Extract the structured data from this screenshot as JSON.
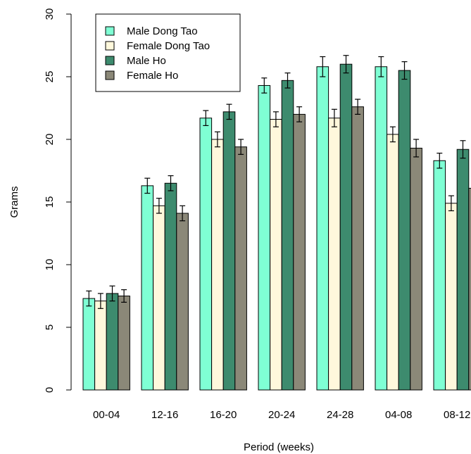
{
  "chart_data": {
    "type": "bar",
    "title": "",
    "xlabel": "Period (weeks)",
    "ylabel": "Grams",
    "ylim": [
      0,
      30
    ],
    "yticks": [
      0,
      5,
      10,
      15,
      20,
      25,
      30
    ],
    "grid": false,
    "legend_position": "top-left",
    "categories": [
      "00-04",
      "12-16",
      "16-20",
      "20-24",
      "24-28",
      "04-08",
      "08-12"
    ],
    "series": [
      {
        "name": "Male Dong Tao",
        "color": "#7fffd4",
        "values": [
          7.3,
          16.3,
          21.7,
          24.3,
          25.8,
          25.8,
          18.3
        ],
        "errors": [
          0.6,
          0.6,
          0.6,
          0.6,
          0.8,
          0.8,
          0.6
        ]
      },
      {
        "name": "Female Dong Tao",
        "color": "#fff8dc",
        "values": [
          7.1,
          14.7,
          20.0,
          21.6,
          21.7,
          20.4,
          14.9
        ],
        "errors": [
          0.6,
          0.6,
          0.6,
          0.6,
          0.7,
          0.6,
          0.6
        ]
      },
      {
        "name": "Male Ho",
        "color": "#3d8b6e",
        "values": [
          7.7,
          16.5,
          22.2,
          24.7,
          26.0,
          25.5,
          19.2
        ],
        "errors": [
          0.6,
          0.6,
          0.6,
          0.6,
          0.7,
          0.7,
          0.7
        ]
      },
      {
        "name": "Female Ho",
        "color": "#8b8878",
        "values": [
          7.5,
          14.1,
          19.4,
          22.0,
          22.6,
          19.3,
          16.1
        ],
        "errors": [
          0.5,
          0.6,
          0.6,
          0.6,
          0.6,
          0.7,
          0.7
        ]
      }
    ]
  }
}
